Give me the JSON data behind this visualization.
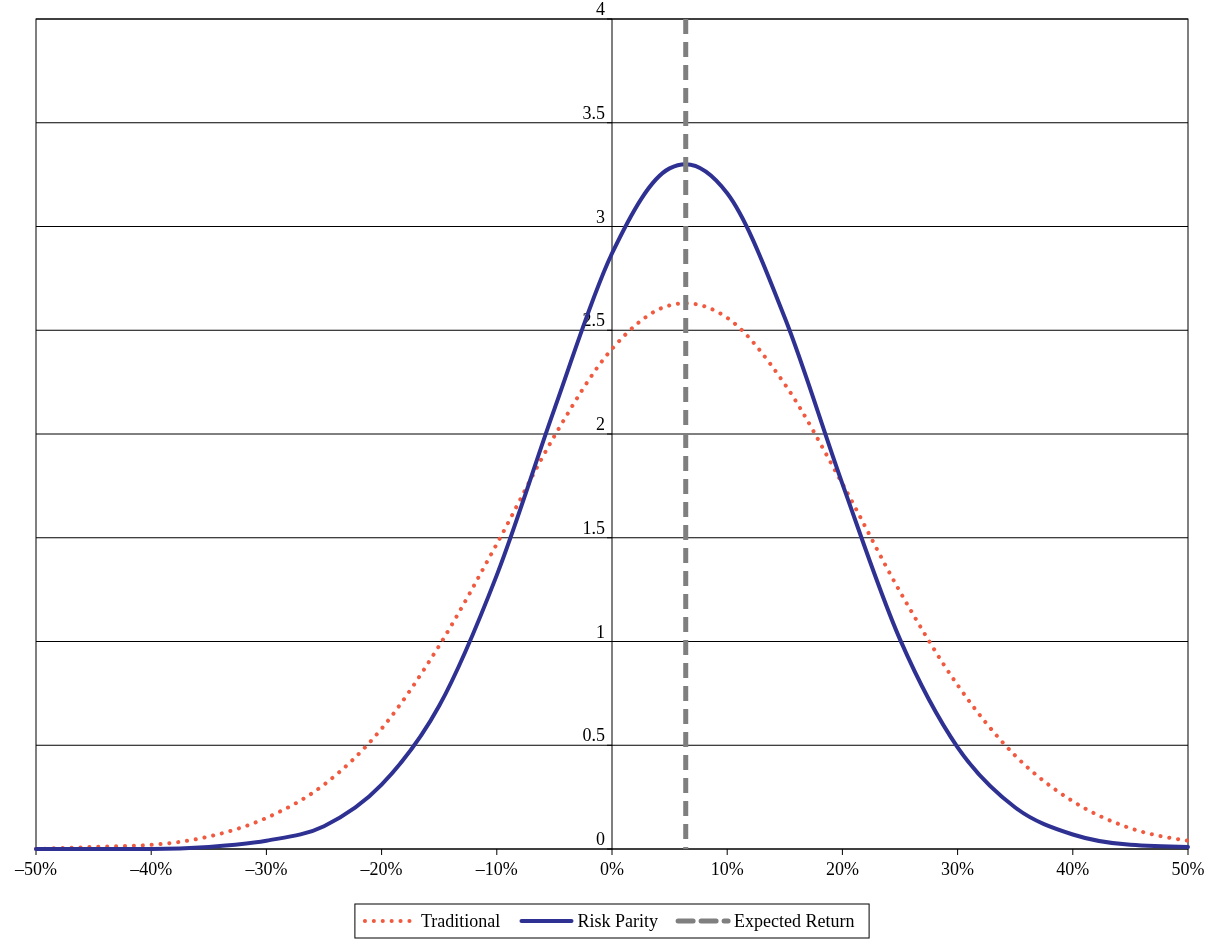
{
  "chart_data": {
    "type": "line",
    "x": [
      -50,
      -45,
      -40,
      -35,
      -30,
      -25,
      -20,
      -15,
      -10,
      -5,
      0,
      5,
      6.4,
      10,
      15,
      20,
      25,
      30,
      35,
      40,
      45,
      50
    ],
    "series": [
      {
        "name": "Traditional",
        "color": "#f05a40",
        "line_style": "dotted",
        "values": [
          0.0,
          0.01,
          0.02,
          0.06,
          0.15,
          0.31,
          0.58,
          0.98,
          1.47,
          1.99,
          2.41,
          2.62,
          2.63,
          2.56,
          2.24,
          1.76,
          1.24,
          0.79,
          0.45,
          0.23,
          0.1,
          0.04
        ]
      },
      {
        "name": "Risk Parity",
        "color": "#2e3192",
        "line_style": "solid",
        "values": [
          0.0,
          0.0,
          0.0,
          0.01,
          0.04,
          0.11,
          0.31,
          0.69,
          1.32,
          2.12,
          2.87,
          3.28,
          3.3,
          3.16,
          2.56,
          1.76,
          1.01,
          0.49,
          0.2,
          0.07,
          0.02,
          0.01
        ]
      }
    ],
    "xlim": [
      -50,
      50
    ],
    "xticks": [
      {
        "value": -50,
        "label": "–50%"
      },
      {
        "value": -40,
        "label": "–40%"
      },
      {
        "value": -30,
        "label": "–30%"
      },
      {
        "value": -20,
        "label": "–20%"
      },
      {
        "value": -10,
        "label": "–10%"
      },
      {
        "value": 0,
        "label": "0%"
      },
      {
        "value": 10,
        "label": "10%"
      },
      {
        "value": 20,
        "label": "20%"
      },
      {
        "value": 30,
        "label": "30%"
      },
      {
        "value": 40,
        "label": "40%"
      },
      {
        "value": 50,
        "label": "50%"
      }
    ],
    "ylim": [
      0,
      4
    ],
    "yticks": [
      0,
      0.5,
      1,
      1.5,
      2,
      2.5,
      3,
      3.5,
      4
    ],
    "grid": "y",
    "legend": "bottom",
    "ref_lines": [
      {
        "axis": "x",
        "value": 6.4,
        "label": "Expected Return",
        "color": "#7f7f7f",
        "line_style": "dashed"
      }
    ]
  }
}
